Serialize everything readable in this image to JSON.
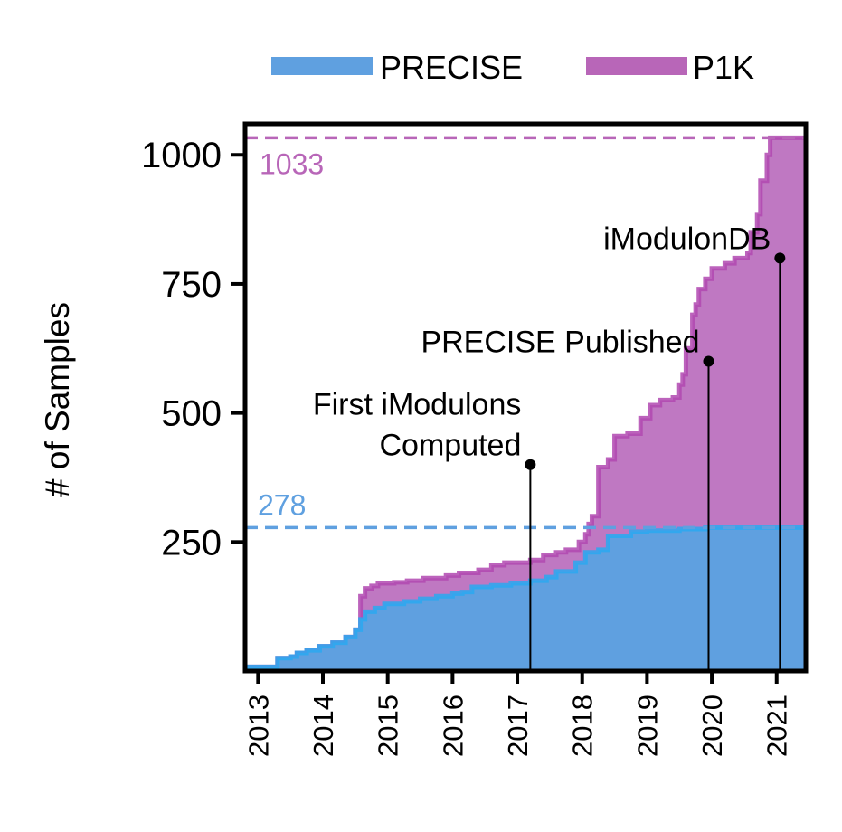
{
  "chart_data": {
    "type": "area",
    "ylabel": "# of Samples",
    "xlabel": "",
    "xlim": [
      2012.8,
      2021.45
    ],
    "ylim": [
      0,
      1060
    ],
    "x_ticks": [
      "2013",
      "2014",
      "2015",
      "2016",
      "2017",
      "2018",
      "2019",
      "2020",
      "2021"
    ],
    "y_ticks": [
      {
        "value": 250,
        "label": "250"
      },
      {
        "value": 500,
        "label": "500"
      },
      {
        "value": 750,
        "label": "750"
      },
      {
        "value": 1000,
        "label": "1000"
      }
    ],
    "legend": {
      "placement": "top",
      "items": [
        {
          "name": "PRECISE",
          "color": "#5fa0e0"
        },
        {
          "name": "P1K",
          "color": "#b866b8"
        }
      ]
    },
    "series": [
      {
        "name": "PRECISE",
        "color": "#5fa0e0",
        "line_color": "#2aa8f0",
        "steps": [
          [
            2012.8,
            8
          ],
          [
            2013.2,
            8
          ],
          [
            2013.3,
            25
          ],
          [
            2013.5,
            28
          ],
          [
            2013.6,
            35
          ],
          [
            2013.75,
            40
          ],
          [
            2013.95,
            48
          ],
          [
            2014.15,
            55
          ],
          [
            2014.35,
            66
          ],
          [
            2014.5,
            80
          ],
          [
            2014.58,
            100
          ],
          [
            2014.65,
            115
          ],
          [
            2014.8,
            122
          ],
          [
            2014.95,
            130
          ],
          [
            2015.25,
            135
          ],
          [
            2015.5,
            140
          ],
          [
            2015.75,
            145
          ],
          [
            2016.0,
            150
          ],
          [
            2016.15,
            153
          ],
          [
            2016.3,
            163
          ],
          [
            2016.6,
            166
          ],
          [
            2016.9,
            170
          ],
          [
            2017.2,
            175
          ],
          [
            2017.45,
            182
          ],
          [
            2017.6,
            193
          ],
          [
            2017.9,
            210
          ],
          [
            2018.05,
            230
          ],
          [
            2018.25,
            235
          ],
          [
            2018.4,
            262
          ],
          [
            2018.75,
            270
          ],
          [
            2019.0,
            272
          ],
          [
            2019.5,
            275
          ],
          [
            2019.9,
            278
          ],
          [
            2021.45,
            278
          ]
        ]
      },
      {
        "name": "P1K",
        "color": "#bf78c2",
        "line_color": "#b048b0",
        "steps": [
          [
            2012.8,
            8
          ],
          [
            2013.2,
            8
          ],
          [
            2013.3,
            25
          ],
          [
            2013.5,
            28
          ],
          [
            2013.6,
            35
          ],
          [
            2013.75,
            40
          ],
          [
            2013.95,
            48
          ],
          [
            2014.15,
            55
          ],
          [
            2014.35,
            66
          ],
          [
            2014.5,
            80
          ],
          [
            2014.58,
            145
          ],
          [
            2014.65,
            160
          ],
          [
            2014.75,
            165
          ],
          [
            2014.85,
            170
          ],
          [
            2015.1,
            172
          ],
          [
            2015.3,
            175
          ],
          [
            2015.55,
            180
          ],
          [
            2015.9,
            185
          ],
          [
            2016.1,
            190
          ],
          [
            2016.4,
            196
          ],
          [
            2016.6,
            205
          ],
          [
            2016.8,
            210
          ],
          [
            2017.2,
            215
          ],
          [
            2017.4,
            225
          ],
          [
            2017.6,
            230
          ],
          [
            2017.75,
            235
          ],
          [
            2017.95,
            250
          ],
          [
            2018.05,
            265
          ],
          [
            2018.1,
            285
          ],
          [
            2018.15,
            300
          ],
          [
            2018.25,
            395
          ],
          [
            2018.4,
            410
          ],
          [
            2018.5,
            455
          ],
          [
            2018.7,
            460
          ],
          [
            2018.9,
            490
          ],
          [
            2019.05,
            515
          ],
          [
            2019.2,
            525
          ],
          [
            2019.4,
            530
          ],
          [
            2019.5,
            555
          ],
          [
            2019.55,
            575
          ],
          [
            2019.6,
            625
          ],
          [
            2019.7,
            690
          ],
          [
            2019.75,
            710
          ],
          [
            2019.8,
            740
          ],
          [
            2019.9,
            760
          ],
          [
            2020.0,
            780
          ],
          [
            2020.2,
            790
          ],
          [
            2020.35,
            800
          ],
          [
            2020.55,
            810
          ],
          [
            2020.6,
            850
          ],
          [
            2020.7,
            885
          ],
          [
            2020.75,
            950
          ],
          [
            2020.85,
            1000
          ],
          [
            2020.9,
            1033
          ],
          [
            2021.45,
            1033
          ]
        ]
      }
    ],
    "reference_lines": [
      {
        "value": 278,
        "label": "278",
        "color": "#5fa0e0"
      },
      {
        "value": 1033,
        "label": "1033",
        "color": "#b866b8"
      }
    ],
    "annotations": [
      {
        "lines": [
          "First iModulons",
          "Computed"
        ],
        "x": 2017.2,
        "y": 400
      },
      {
        "lines": [
          "PRECISE Published"
        ],
        "x": 2019.95,
        "y": 600
      },
      {
        "lines": [
          "iModulonDB"
        ],
        "x": 2021.05,
        "y": 800
      }
    ]
  }
}
